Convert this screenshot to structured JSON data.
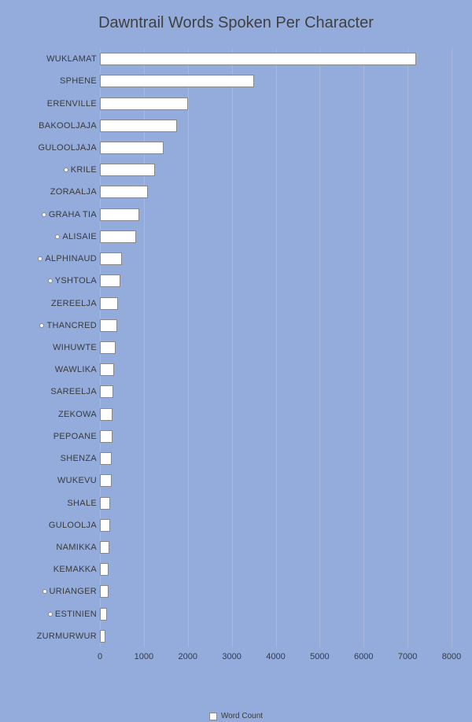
{
  "chart": {
    "type": "bar-horizontal",
    "title": "Dawntrail Words Spoken Per Character",
    "title_fontsize": 20,
    "title_color": "#404040",
    "background_color": "#93acdc",
    "bar_fill": "#ffffff",
    "bar_border": "#888888",
    "grid_color": "#a8b9dc",
    "marker_fill": "#ffffff",
    "marker_border": "#888888",
    "label_fontsize": 11,
    "legend_label": "Word Count",
    "xaxis": {
      "min": 0,
      "max": 8000,
      "ticks": [
        0,
        1000,
        2000,
        3000,
        4000,
        5000,
        6000,
        7000,
        8000
      ]
    },
    "rows": [
      {
        "name": "WUKLAMAT",
        "value": 7200,
        "marker": false
      },
      {
        "name": "SPHENE",
        "value": 3500,
        "marker": false
      },
      {
        "name": "ERENVILLE",
        "value": 2000,
        "marker": false
      },
      {
        "name": "BAKOOLJAJA",
        "value": 1750,
        "marker": false
      },
      {
        "name": "GULOOLJAJA",
        "value": 1450,
        "marker": false
      },
      {
        "name": "KRILE",
        "value": 1250,
        "marker": true
      },
      {
        "name": "ZORAALJA",
        "value": 1100,
        "marker": false
      },
      {
        "name": "GRAHA TIA",
        "value": 900,
        "marker": true
      },
      {
        "name": "ALISAIE",
        "value": 830,
        "marker": true
      },
      {
        "name": "ALPHINAUD",
        "value": 500,
        "marker": true
      },
      {
        "name": "YSHTOLA",
        "value": 470,
        "marker": true
      },
      {
        "name": "ZEREELJA",
        "value": 420,
        "marker": false
      },
      {
        "name": "THANCRED",
        "value": 400,
        "marker": true
      },
      {
        "name": "WIHUWTE",
        "value": 360,
        "marker": false
      },
      {
        "name": "WAWLIKA",
        "value": 330,
        "marker": false
      },
      {
        "name": "SAREELJA",
        "value": 300,
        "marker": false
      },
      {
        "name": "ZEKOWA",
        "value": 290,
        "marker": false
      },
      {
        "name": "PEPOANE",
        "value": 280,
        "marker": false
      },
      {
        "name": "SHENZA",
        "value": 270,
        "marker": false
      },
      {
        "name": "WUKEVU",
        "value": 260,
        "marker": false
      },
      {
        "name": "SHALE",
        "value": 240,
        "marker": false
      },
      {
        "name": "GULOOLJA",
        "value": 230,
        "marker": false
      },
      {
        "name": "NAMIKKA",
        "value": 220,
        "marker": false
      },
      {
        "name": "KEMAKKA",
        "value": 200,
        "marker": false
      },
      {
        "name": "URIANGER",
        "value": 190,
        "marker": true
      },
      {
        "name": "ESTINIEN",
        "value": 170,
        "marker": true
      },
      {
        "name": "ZURMURWUR",
        "value": 130,
        "marker": false
      }
    ]
  }
}
